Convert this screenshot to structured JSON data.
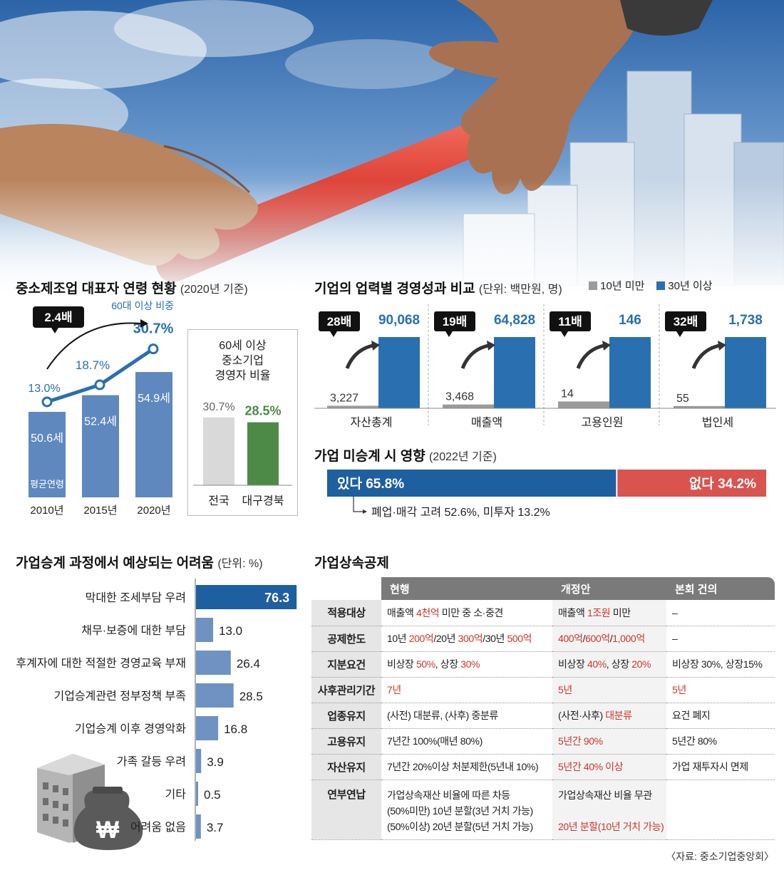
{
  "ceo_age": {
    "title": "중소제조업 대표자 연령 현황",
    "title_note": "(2020년 기준)",
    "ratio_badge": "2.4배",
    "share_label": "60대 이상 비중",
    "years": [
      "2010년",
      "2015년",
      "2020년"
    ],
    "avg_age": [
      50.6,
      52.4,
      54.9
    ],
    "avg_age_labels": [
      "50.6세",
      "52.4세",
      "54.9세"
    ],
    "avg_age_caption": "평균연령",
    "share_60plus": [
      13.0,
      18.7,
      30.7
    ],
    "share_60plus_labels": [
      "13.0%",
      "18.7%",
      "30.7%"
    ]
  },
  "region_share": {
    "title_lines": [
      "60세 이상",
      "중소기업",
      "경영자 비율"
    ],
    "categories": [
      "전국",
      "대구경북"
    ],
    "values": [
      30.7,
      28.5
    ],
    "value_labels": [
      "30.7%",
      "28.5%"
    ],
    "colors": [
      "#d9d9d9",
      "#4e8a47"
    ]
  },
  "performance": {
    "title": "기업의 업력별 경영성과 비교",
    "title_note": "(단위: 백만원, 명)",
    "legend": [
      {
        "label": "10년 미만",
        "color": "#9b9b9b"
      },
      {
        "label": "30년 이상",
        "color": "#2a6fb0"
      }
    ],
    "groups": [
      {
        "name": "자산총계",
        "under10": 3227,
        "over30": 90068,
        "under10_label": "3,227",
        "over30_label": "90,068",
        "ratio": "28배"
      },
      {
        "name": "매출액",
        "under10": 3468,
        "over30": 64828,
        "under10_label": "3,468",
        "over30_label": "64,828",
        "ratio": "19배"
      },
      {
        "name": "고용인원",
        "under10": 14,
        "over30": 146,
        "under10_label": "14",
        "over30_label": "146",
        "ratio": "11배"
      },
      {
        "name": "법인세",
        "under10": 55,
        "over30": 1738,
        "under10_label": "55",
        "over30_label": "1,738",
        "ratio": "32배"
      }
    ]
  },
  "impact": {
    "title": "가업 미승계 시 영향",
    "title_note": "(2022년 기준)",
    "yes": 65.8,
    "no": 34.2,
    "yes_label": "있다 65.8%",
    "no_label": "없다 34.2%",
    "yes_color": "#1e5fa0",
    "no_color": "#d9534f",
    "detail": "폐업·매각 고려 52.6%, 미투자 13.2%"
  },
  "difficulty": {
    "title": "가업승계 과정에서 예상되는 어려움",
    "title_note": "(단위: %)",
    "items": [
      {
        "label": "막대한 조세부담 우려",
        "value": 76.3,
        "value_label": "76.3"
      },
      {
        "label": "채무·보증에 대한 부담",
        "value": 13.0,
        "value_label": "13.0"
      },
      {
        "label": "후계자에 대한 적절한 경영교육 부재",
        "value": 26.4,
        "value_label": "26.4"
      },
      {
        "label": "기업승계관련 정부정책 부족",
        "value": 28.5,
        "value_label": "28.5"
      },
      {
        "label": "기업승계 이후 경영악화",
        "value": 16.8,
        "value_label": "16.8"
      },
      {
        "label": "가족 갈등 우려",
        "value": 3.9,
        "value_label": "3.9"
      },
      {
        "label": "기타",
        "value": 0.5,
        "value_label": "0.5"
      },
      {
        "label": "어려움 없음",
        "value": 3.7,
        "value_label": "3.7"
      }
    ],
    "highlight_color": "#1e5fa0",
    "bar_color": "#6f92c2",
    "icon_glyph": "₩"
  },
  "table": {
    "title": "가업상속공제",
    "headers": [
      "현행",
      "개정안",
      "본회 건의"
    ],
    "rows": [
      {
        "head": "적용대상",
        "c1": [
          [
            "매출액 ",
            0
          ],
          [
            "4천억",
            1
          ],
          [
            " 미만 중 소·중견",
            0
          ]
        ],
        "c2": [
          [
            "매출액 ",
            0
          ],
          [
            "1조원",
            1
          ],
          [
            " 미만",
            0
          ]
        ],
        "c3": [
          [
            "–",
            0
          ]
        ]
      },
      {
        "head": "공제한도",
        "c1": [
          [
            "10년 ",
            0
          ],
          [
            "200억",
            1
          ],
          [
            "/20년 ",
            0
          ],
          [
            "300억",
            1
          ],
          [
            "/30년 ",
            0
          ],
          [
            "500억",
            1
          ]
        ],
        "c2": [
          [
            "400억",
            1
          ],
          [
            "/",
            0
          ],
          [
            "600억",
            1
          ],
          [
            "/",
            0
          ],
          [
            "1,000억",
            1
          ]
        ],
        "c3": [
          [
            "–",
            0
          ]
        ]
      },
      {
        "head": "지분요건",
        "c1": [
          [
            "비상장 ",
            0
          ],
          [
            "50%",
            1
          ],
          [
            ", 상장 ",
            0
          ],
          [
            "30%",
            1
          ]
        ],
        "c2": [
          [
            "비상장 ",
            0
          ],
          [
            "40%",
            1
          ],
          [
            ", 상장 ",
            0
          ],
          [
            "20%",
            1
          ]
        ],
        "c3": [
          [
            "비상장 30%, 상장15%",
            0
          ]
        ]
      },
      {
        "head": "사후관리기간",
        "c1": [
          [
            "7년",
            1
          ]
        ],
        "c2": [
          [
            "5년",
            1
          ]
        ],
        "c3": [
          [
            "5년",
            1
          ]
        ]
      },
      {
        "head": "업종유지",
        "c1": [
          [
            "(사전) 대분류, (사후) 중분류",
            0
          ]
        ],
        "c2": [
          [
            "(사전·사후) ",
            0
          ],
          [
            "대분류",
            1
          ]
        ],
        "c3": [
          [
            "요건 폐지",
            0
          ]
        ]
      },
      {
        "head": "고용유지",
        "c1": [
          [
            "7년간 100%(매년 80%)",
            0
          ]
        ],
        "c2": [
          [
            "5년간 90%",
            1
          ]
        ],
        "c3": [
          [
            "5년간 80%",
            0
          ]
        ]
      },
      {
        "head": "자산유지",
        "c1": [
          [
            "7년간 20%이상 처분제한(5년내 10%)",
            0
          ]
        ],
        "c2": [
          [
            "5년간 40% 이상",
            1
          ]
        ],
        "c3": [
          [
            "가업 재투자시 면제",
            0
          ]
        ]
      },
      {
        "head": "연부연납",
        "c1": [
          [
            "가업상속재산 비율에 따른 차등",
            0
          ],
          [
            "\n",
            0
          ],
          [
            "(50%미만) 10년 분할(3년 거치 가능)",
            0
          ],
          [
            "\n",
            0
          ],
          [
            "(50%이상) 20년 분할(5년 거치 가능)",
            0
          ]
        ],
        "c2": [
          [
            "가업상속재산 비율 무관",
            0
          ],
          [
            "\n",
            0
          ],
          [
            "\n",
            0
          ],
          [
            "20년 분할(10년 거치 가능)",
            1
          ]
        ],
        "c3": []
      }
    ]
  },
  "source": "〈자료: 중소기업중앙회〉"
}
